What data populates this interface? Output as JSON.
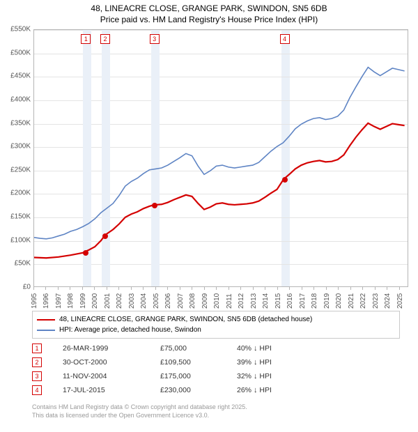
{
  "title": {
    "line1": "48, LINEACRE CLOSE, GRANGE PARK, SWINDON, SN5 6DB",
    "line2": "Price paid vs. HM Land Registry's House Price Index (HPI)"
  },
  "chart": {
    "type": "line",
    "x_domain_years": [
      1995,
      2025.75
    ],
    "y_domain": [
      0,
      550000
    ],
    "y_ticks": [
      0,
      50000,
      100000,
      150000,
      200000,
      250000,
      300000,
      350000,
      400000,
      450000,
      500000,
      550000
    ],
    "y_tick_labels": [
      "£0",
      "£50K",
      "£100K",
      "£150K",
      "£200K",
      "£250K",
      "£300K",
      "£350K",
      "£400K",
      "£450K",
      "£500K",
      "£550K"
    ],
    "x_ticks": [
      1995,
      1996,
      1997,
      1998,
      1999,
      2000,
      2001,
      2002,
      2003,
      2004,
      2005,
      2006,
      2007,
      2008,
      2009,
      2010,
      2011,
      2012,
      2013,
      2014,
      2015,
      2016,
      2017,
      2018,
      2019,
      2020,
      2021,
      2022,
      2023,
      2024,
      2025
    ],
    "grid_color": "#e4e4e4",
    "border_color": "#b5b5b5",
    "band_color": "#eaf0f8",
    "bands": [
      [
        1999.0,
        1999.7
      ],
      [
        2000.55,
        2001.25
      ],
      [
        2004.6,
        2005.3
      ],
      [
        2015.3,
        2016.0
      ]
    ],
    "series": {
      "hpi": {
        "label": "HPI: Average price, detached house, Swindon",
        "color": "#5e84c4",
        "width": 1.6,
        "points": [
          [
            1995.0,
            105000
          ],
          [
            1995.5,
            103000
          ],
          [
            1996.0,
            102000
          ],
          [
            1996.5,
            104000
          ],
          [
            1997.0,
            108000
          ],
          [
            1997.5,
            112000
          ],
          [
            1998.0,
            118000
          ],
          [
            1998.5,
            122000
          ],
          [
            1999.0,
            128000
          ],
          [
            1999.5,
            135000
          ],
          [
            2000.0,
            145000
          ],
          [
            2000.5,
            158000
          ],
          [
            2001.0,
            168000
          ],
          [
            2001.5,
            178000
          ],
          [
            2002.0,
            195000
          ],
          [
            2002.5,
            215000
          ],
          [
            2003.0,
            225000
          ],
          [
            2003.5,
            232000
          ],
          [
            2004.0,
            242000
          ],
          [
            2004.5,
            250000
          ],
          [
            2005.0,
            252000
          ],
          [
            2005.5,
            254000
          ],
          [
            2006.0,
            260000
          ],
          [
            2006.5,
            268000
          ],
          [
            2007.0,
            276000
          ],
          [
            2007.5,
            285000
          ],
          [
            2008.0,
            280000
          ],
          [
            2008.5,
            258000
          ],
          [
            2009.0,
            240000
          ],
          [
            2009.5,
            248000
          ],
          [
            2010.0,
            258000
          ],
          [
            2010.5,
            260000
          ],
          [
            2011.0,
            256000
          ],
          [
            2011.5,
            254000
          ],
          [
            2012.0,
            256000
          ],
          [
            2012.5,
            258000
          ],
          [
            2013.0,
            260000
          ],
          [
            2013.5,
            266000
          ],
          [
            2014.0,
            278000
          ],
          [
            2014.5,
            290000
          ],
          [
            2015.0,
            300000
          ],
          [
            2015.5,
            308000
          ],
          [
            2016.0,
            322000
          ],
          [
            2016.5,
            338000
          ],
          [
            2017.0,
            348000
          ],
          [
            2017.5,
            355000
          ],
          [
            2018.0,
            360000
          ],
          [
            2018.5,
            362000
          ],
          [
            2019.0,
            358000
          ],
          [
            2019.5,
            360000
          ],
          [
            2020.0,
            365000
          ],
          [
            2020.5,
            378000
          ],
          [
            2021.0,
            405000
          ],
          [
            2021.5,
            428000
          ],
          [
            2022.0,
            450000
          ],
          [
            2022.5,
            470000
          ],
          [
            2023.0,
            460000
          ],
          [
            2023.5,
            452000
          ],
          [
            2024.0,
            460000
          ],
          [
            2024.5,
            468000
          ],
          [
            2025.0,
            465000
          ],
          [
            2025.5,
            462000
          ]
        ]
      },
      "property": {
        "label": "48, LINEACRE CLOSE, GRANGE PARK, SWINDON, SN5 6DB (detached house)",
        "color": "#d40000",
        "width": 2.2,
        "points": [
          [
            1995.0,
            62000
          ],
          [
            1996.0,
            61000
          ],
          [
            1997.0,
            63000
          ],
          [
            1998.0,
            67000
          ],
          [
            1999.0,
            72000
          ],
          [
            1999.25,
            75000
          ],
          [
            1999.5,
            78000
          ],
          [
            2000.0,
            85000
          ],
          [
            2000.5,
            98000
          ],
          [
            2000.83,
            109500
          ],
          [
            2001.0,
            113000
          ],
          [
            2001.5,
            122000
          ],
          [
            2002.0,
            134000
          ],
          [
            2002.5,
            148000
          ],
          [
            2003.0,
            155000
          ],
          [
            2003.5,
            160000
          ],
          [
            2004.0,
            167000
          ],
          [
            2004.5,
            172000
          ],
          [
            2004.87,
            175000
          ],
          [
            2005.0,
            175000
          ],
          [
            2005.5,
            176000
          ],
          [
            2006.0,
            180000
          ],
          [
            2006.5,
            186000
          ],
          [
            2007.0,
            191000
          ],
          [
            2007.5,
            196000
          ],
          [
            2008.0,
            193000
          ],
          [
            2008.5,
            178000
          ],
          [
            2009.0,
            165000
          ],
          [
            2009.5,
            170000
          ],
          [
            2010.0,
            177000
          ],
          [
            2010.5,
            179000
          ],
          [
            2011.0,
            176000
          ],
          [
            2011.5,
            175000
          ],
          [
            2012.0,
            176000
          ],
          [
            2012.5,
            177000
          ],
          [
            2013.0,
            179000
          ],
          [
            2013.5,
            183000
          ],
          [
            2014.0,
            191000
          ],
          [
            2014.5,
            200000
          ],
          [
            2015.0,
            208000
          ],
          [
            2015.55,
            230000
          ],
          [
            2016.0,
            240000
          ],
          [
            2016.5,
            252000
          ],
          [
            2017.0,
            260000
          ],
          [
            2017.5,
            265000
          ],
          [
            2018.0,
            268000
          ],
          [
            2018.5,
            270000
          ],
          [
            2019.0,
            267000
          ],
          [
            2019.5,
            268000
          ],
          [
            2020.0,
            272000
          ],
          [
            2020.5,
            282000
          ],
          [
            2021.0,
            302000
          ],
          [
            2021.5,
            320000
          ],
          [
            2022.0,
            336000
          ],
          [
            2022.5,
            350000
          ],
          [
            2023.0,
            343000
          ],
          [
            2023.5,
            337000
          ],
          [
            2024.0,
            343000
          ],
          [
            2024.5,
            349000
          ],
          [
            2025.0,
            347000
          ],
          [
            2025.5,
            345000
          ]
        ]
      }
    },
    "sale_markers": [
      {
        "n": "1",
        "year": 1999.25,
        "color": "#d40000"
      },
      {
        "n": "2",
        "year": 2000.83,
        "color": "#d40000"
      },
      {
        "n": "3",
        "year": 2004.87,
        "color": "#d40000"
      },
      {
        "n": "4",
        "year": 2015.55,
        "color": "#d40000"
      }
    ],
    "sale_dots": [
      {
        "year": 1999.25,
        "value": 75000,
        "color": "#d40000"
      },
      {
        "year": 2000.83,
        "value": 109500,
        "color": "#d40000"
      },
      {
        "year": 2004.87,
        "value": 175000,
        "color": "#d40000"
      },
      {
        "year": 2015.55,
        "value": 230000,
        "color": "#d40000"
      }
    ]
  },
  "legend": {
    "rows": [
      {
        "color": "#d40000",
        "label": "48, LINEACRE CLOSE, GRANGE PARK, SWINDON, SN5 6DB (detached house)"
      },
      {
        "color": "#5e84c4",
        "label": "HPI: Average price, detached house, Swindon"
      }
    ]
  },
  "sales_table": {
    "marker_color": "#d40000",
    "rows": [
      {
        "n": "1",
        "date": "26-MAR-1999",
        "price": "£75,000",
        "delta": "40%",
        "suffix": "HPI"
      },
      {
        "n": "2",
        "date": "30-OCT-2000",
        "price": "£109,500",
        "delta": "39%",
        "suffix": "HPI"
      },
      {
        "n": "3",
        "date": "11-NOV-2004",
        "price": "£175,000",
        "delta": "32%",
        "suffix": "HPI"
      },
      {
        "n": "4",
        "date": "17-JUL-2015",
        "price": "£230,000",
        "delta": "26%",
        "suffix": "HPI"
      }
    ]
  },
  "footnote": {
    "line1": "Contains HM Land Registry data © Crown copyright and database right 2025.",
    "line2": "This data is licensed under the Open Government Licence v3.0."
  }
}
